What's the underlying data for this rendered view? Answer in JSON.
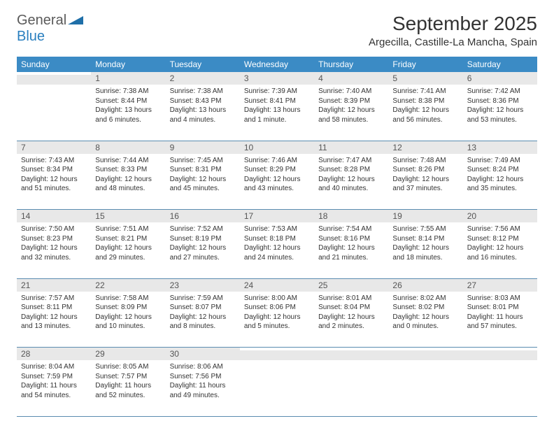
{
  "logo": {
    "general": "General",
    "blue": "Blue"
  },
  "title": {
    "month": "September 2025",
    "location": "Argecilla, Castille-La Mancha, Spain"
  },
  "colors": {
    "header_bg": "#3b8bc5",
    "header_text": "#ffffff",
    "daynum_bg": "#e8e8e8",
    "border": "#5a8cb0",
    "logo_gray": "#5a5a5a",
    "logo_blue": "#2a7fbf"
  },
  "headers": [
    "Sunday",
    "Monday",
    "Tuesday",
    "Wednesday",
    "Thursday",
    "Friday",
    "Saturday"
  ],
  "days": {
    "1": {
      "sunrise": "7:38 AM",
      "sunset": "8:44 PM",
      "daylight": "13 hours and 6 minutes."
    },
    "2": {
      "sunrise": "7:38 AM",
      "sunset": "8:43 PM",
      "daylight": "13 hours and 4 minutes."
    },
    "3": {
      "sunrise": "7:39 AM",
      "sunset": "8:41 PM",
      "daylight": "13 hours and 1 minute."
    },
    "4": {
      "sunrise": "7:40 AM",
      "sunset": "8:39 PM",
      "daylight": "12 hours and 58 minutes."
    },
    "5": {
      "sunrise": "7:41 AM",
      "sunset": "8:38 PM",
      "daylight": "12 hours and 56 minutes."
    },
    "6": {
      "sunrise": "7:42 AM",
      "sunset": "8:36 PM",
      "daylight": "12 hours and 53 minutes."
    },
    "7": {
      "sunrise": "7:43 AM",
      "sunset": "8:34 PM",
      "daylight": "12 hours and 51 minutes."
    },
    "8": {
      "sunrise": "7:44 AM",
      "sunset": "8:33 PM",
      "daylight": "12 hours and 48 minutes."
    },
    "9": {
      "sunrise": "7:45 AM",
      "sunset": "8:31 PM",
      "daylight": "12 hours and 45 minutes."
    },
    "10": {
      "sunrise": "7:46 AM",
      "sunset": "8:29 PM",
      "daylight": "12 hours and 43 minutes."
    },
    "11": {
      "sunrise": "7:47 AM",
      "sunset": "8:28 PM",
      "daylight": "12 hours and 40 minutes."
    },
    "12": {
      "sunrise": "7:48 AM",
      "sunset": "8:26 PM",
      "daylight": "12 hours and 37 minutes."
    },
    "13": {
      "sunrise": "7:49 AM",
      "sunset": "8:24 PM",
      "daylight": "12 hours and 35 minutes."
    },
    "14": {
      "sunrise": "7:50 AM",
      "sunset": "8:23 PM",
      "daylight": "12 hours and 32 minutes."
    },
    "15": {
      "sunrise": "7:51 AM",
      "sunset": "8:21 PM",
      "daylight": "12 hours and 29 minutes."
    },
    "16": {
      "sunrise": "7:52 AM",
      "sunset": "8:19 PM",
      "daylight": "12 hours and 27 minutes."
    },
    "17": {
      "sunrise": "7:53 AM",
      "sunset": "8:18 PM",
      "daylight": "12 hours and 24 minutes."
    },
    "18": {
      "sunrise": "7:54 AM",
      "sunset": "8:16 PM",
      "daylight": "12 hours and 21 minutes."
    },
    "19": {
      "sunrise": "7:55 AM",
      "sunset": "8:14 PM",
      "daylight": "12 hours and 18 minutes."
    },
    "20": {
      "sunrise": "7:56 AM",
      "sunset": "8:12 PM",
      "daylight": "12 hours and 16 minutes."
    },
    "21": {
      "sunrise": "7:57 AM",
      "sunset": "8:11 PM",
      "daylight": "12 hours and 13 minutes."
    },
    "22": {
      "sunrise": "7:58 AM",
      "sunset": "8:09 PM",
      "daylight": "12 hours and 10 minutes."
    },
    "23": {
      "sunrise": "7:59 AM",
      "sunset": "8:07 PM",
      "daylight": "12 hours and 8 minutes."
    },
    "24": {
      "sunrise": "8:00 AM",
      "sunset": "8:06 PM",
      "daylight": "12 hours and 5 minutes."
    },
    "25": {
      "sunrise": "8:01 AM",
      "sunset": "8:04 PM",
      "daylight": "12 hours and 2 minutes."
    },
    "26": {
      "sunrise": "8:02 AM",
      "sunset": "8:02 PM",
      "daylight": "12 hours and 0 minutes."
    },
    "27": {
      "sunrise": "8:03 AM",
      "sunset": "8:01 PM",
      "daylight": "11 hours and 57 minutes."
    },
    "28": {
      "sunrise": "8:04 AM",
      "sunset": "7:59 PM",
      "daylight": "11 hours and 54 minutes."
    },
    "29": {
      "sunrise": "8:05 AM",
      "sunset": "7:57 PM",
      "daylight": "11 hours and 52 minutes."
    },
    "30": {
      "sunrise": "8:06 AM",
      "sunset": "7:56 PM",
      "daylight": "11 hours and 49 minutes."
    }
  },
  "labels": {
    "sunrise": "Sunrise:",
    "sunset": "Sunset:",
    "daylight": "Daylight:"
  },
  "layout": {
    "weeks": [
      [
        null,
        1,
        2,
        3,
        4,
        5,
        6
      ],
      [
        7,
        8,
        9,
        10,
        11,
        12,
        13
      ],
      [
        14,
        15,
        16,
        17,
        18,
        19,
        20
      ],
      [
        21,
        22,
        23,
        24,
        25,
        26,
        27
      ],
      [
        28,
        29,
        30,
        null,
        null,
        null,
        null
      ]
    ]
  }
}
